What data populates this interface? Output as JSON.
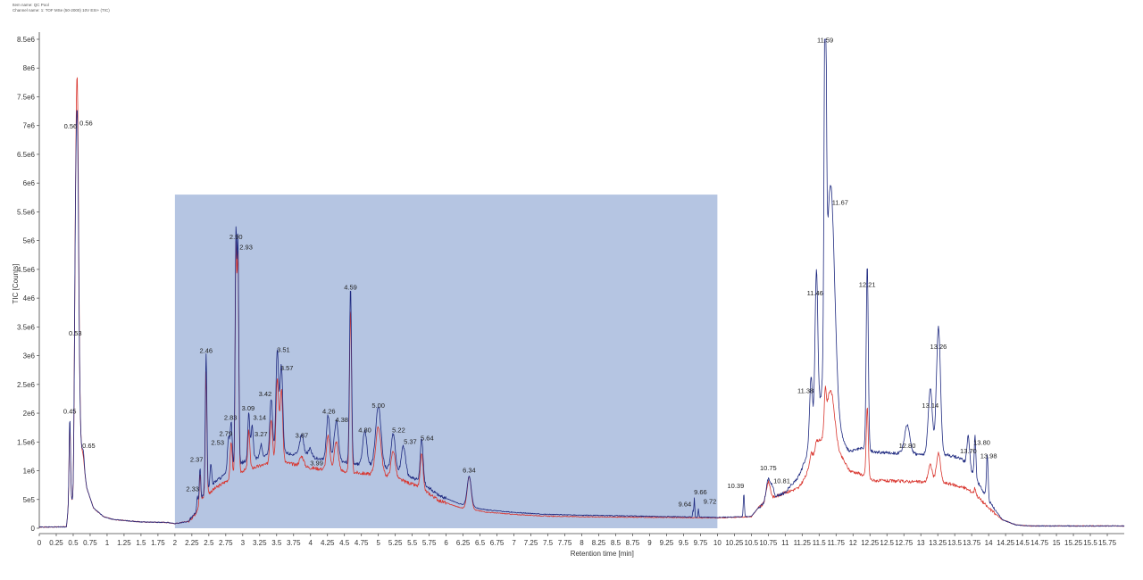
{
  "header": {
    "line1": "Item name: QC Pool",
    "line2": "Channel name: 1: TOF MSe (50-2000) 10V ESI+ (TIC)"
  },
  "colors": {
    "blue": "#1f2a80",
    "red": "#d9362f",
    "highlight": "#b5c5e2",
    "axis": "#444444"
  },
  "chart_data": {
    "type": "line",
    "title": "",
    "xlabel": "Retention time [min]",
    "ylabel": "TIC [Counts]",
    "xlim": [
      0,
      16
    ],
    "ylim": [
      0,
      8500000
    ],
    "x_ticks": [
      0,
      0.25,
      0.5,
      0.75,
      1,
      1.25,
      1.5,
      1.75,
      2,
      2.25,
      2.5,
      2.75,
      3,
      3.25,
      3.5,
      3.75,
      4,
      4.25,
      4.5,
      4.75,
      5,
      5.25,
      5.5,
      5.75,
      6,
      6.25,
      6.5,
      6.75,
      7,
      7.25,
      7.5,
      7.75,
      8,
      8.25,
      8.5,
      8.75,
      9,
      9.25,
      9.5,
      9.75,
      10,
      10.25,
      10.5,
      10.75,
      11,
      11.25,
      11.5,
      11.75,
      12,
      12.25,
      12.5,
      12.75,
      13,
      13.25,
      13.5,
      13.75,
      14,
      14.25,
      14.5,
      14.75,
      15,
      15.25,
      15.5,
      15.75
    ],
    "x_tick_labels": [
      "0",
      "0.25",
      "0.5",
      "0.75",
      "1",
      "1.25",
      "1.5",
      "1.75",
      "2",
      "2.25",
      "2.5",
      "2.75",
      "3",
      "3.25",
      "3.5",
      "3.75",
      "4",
      "4.25",
      "4.5",
      "4.75",
      "5",
      "5.25",
      "5.5",
      "5.75",
      "6",
      "6.25",
      "6.5",
      "6.75",
      "7",
      "7.25",
      "7.5",
      "7.75",
      "8",
      "8.25",
      "8.5",
      "8.75",
      "9",
      "9.25",
      "9.5",
      "9.75",
      "10",
      "10.25",
      "10.5",
      "10.75",
      "11",
      "11.25",
      "11.5",
      "11.75",
      "12",
      "12.25",
      "12.5",
      "12.75",
      "13",
      "13.25",
      "13.5",
      "13.75",
      "14",
      "14.25",
      "14.5",
      "14.75",
      "15",
      "15.25",
      "15.5",
      "15.75"
    ],
    "y_ticks": [
      0,
      500000,
      1000000,
      1500000,
      2000000,
      2500000,
      3000000,
      3500000,
      4000000,
      4500000,
      5000000,
      5500000,
      6000000,
      6500000,
      7000000,
      7500000,
      8000000,
      8500000
    ],
    "y_tick_labels": [
      "0",
      "5e5",
      "1e6",
      "1.5e6",
      "2e6",
      "2.5e6",
      "3e6",
      "3.5e6",
      "4e6",
      "4.5e6",
      "5e6",
      "5.5e6",
      "6e6",
      "6.5e6",
      "7e6",
      "7.5e6",
      "8e6",
      "8.5e6"
    ],
    "highlight_region": {
      "x": [
        2,
        10
      ],
      "y": [
        0,
        5800000
      ]
    },
    "baseline": [
      [
        0,
        20000
      ],
      [
        0.4,
        25000
      ],
      [
        0.45,
        600000
      ],
      [
        0.5,
        400000
      ],
      [
        0.6,
        1600000
      ],
      [
        0.7,
        700000
      ],
      [
        0.8,
        350000
      ],
      [
        0.95,
        200000
      ],
      [
        1.1,
        150000
      ],
      [
        1.5,
        110000
      ],
      [
        1.9,
        100000
      ],
      [
        2,
        80000
      ],
      [
        2.2,
        120000
      ],
      [
        2.3,
        250000
      ],
      [
        2.4,
        520000
      ],
      [
        2.6,
        700000
      ],
      [
        2.8,
        850000
      ],
      [
        3.0,
        1000000
      ],
      [
        3.3,
        1100000
      ],
      [
        3.6,
        1150000
      ],
      [
        4.0,
        1050000
      ],
      [
        4.4,
        1000000
      ],
      [
        4.8,
        950000
      ],
      [
        5.2,
        900000
      ],
      [
        5.6,
        720000
      ],
      [
        5.9,
        480000
      ],
      [
        6.2,
        360000
      ],
      [
        6.6,
        280000
      ],
      [
        7.0,
        240000
      ],
      [
        7.5,
        210000
      ],
      [
        8.0,
        200000
      ],
      [
        9.0,
        190000
      ],
      [
        10.0,
        180000
      ],
      [
        10.5,
        200000
      ],
      [
        10.6,
        350000
      ],
      [
        10.8,
        520000
      ],
      [
        11.0,
        620000
      ],
      [
        11.2,
        700000
      ],
      [
        11.3,
        900000
      ],
      [
        11.4,
        1200000
      ],
      [
        11.5,
        1500000
      ],
      [
        11.85,
        1200000
      ],
      [
        11.95,
        1000000
      ],
      [
        12.1,
        950000
      ],
      [
        12.3,
        830000
      ],
      [
        12.6,
        820000
      ],
      [
        12.9,
        810000
      ],
      [
        13.1,
        800000
      ],
      [
        13.4,
        780000
      ],
      [
        13.65,
        700000
      ],
      [
        13.8,
        600000
      ],
      [
        14.0,
        350000
      ],
      [
        14.2,
        150000
      ],
      [
        14.4,
        60000
      ],
      [
        14.6,
        40000
      ],
      [
        16.0,
        40000
      ]
    ],
    "series": [
      {
        "color": "#1f2a80",
        "peaks": [
          [
            0.45,
            1950000,
            0.01
          ],
          [
            0.53,
            3300000,
            0.015
          ],
          [
            0.56,
            6900000,
            0.02
          ],
          [
            0.65,
            1350000,
            0.012
          ],
          [
            2.33,
            520000,
            0.01
          ],
          [
            2.37,
            1050000,
            0.01
          ],
          [
            2.46,
            2950000,
            0.012
          ],
          [
            2.53,
            1050000,
            0.012
          ],
          [
            2.79,
            1450000,
            0.015
          ],
          [
            2.83,
            1700000,
            0.015
          ],
          [
            2.9,
            4950000,
            0.012
          ],
          [
            2.93,
            4750000,
            0.012
          ],
          [
            3.09,
            1850000,
            0.015
          ],
          [
            3.14,
            1650000,
            0.015
          ],
          [
            3.27,
            1300000,
            0.015
          ],
          [
            3.42,
            2100000,
            0.02
          ],
          [
            3.51,
            2950000,
            0.02
          ],
          [
            3.57,
            2650000,
            0.02
          ],
          [
            3.87,
            1450000,
            0.03
          ],
          [
            3.99,
            1200000,
            0.03
          ],
          [
            4.26,
            1800000,
            0.025
          ],
          [
            4.38,
            1700000,
            0.03
          ],
          [
            4.59,
            4050000,
            0.015
          ],
          [
            4.8,
            1550000,
            0.03
          ],
          [
            5.0,
            1970000,
            0.04
          ],
          [
            5.22,
            1500000,
            0.03
          ],
          [
            5.37,
            1300000,
            0.03
          ],
          [
            5.64,
            1450000,
            0.02
          ],
          [
            6.34,
            850000,
            0.03
          ],
          [
            9.64,
            300000,
            0.006
          ],
          [
            9.66,
            520000,
            0.006
          ],
          [
            9.72,
            330000,
            0.006
          ],
          [
            10.39,
            600000,
            0.008
          ],
          [
            10.75,
            850000,
            0.03
          ],
          [
            10.81,
            700000,
            0.02
          ],
          [
            11.38,
            2200000,
            0.02
          ],
          [
            11.46,
            3950000,
            0.02
          ],
          [
            11.59,
            8350000,
            0.015
          ],
          [
            11.67,
            5500000,
            0.06
          ],
          [
            12.21,
            4100000,
            0.015
          ],
          [
            12.8,
            1300000,
            0.04
          ],
          [
            13.14,
            1950000,
            0.03
          ],
          [
            13.26,
            3000000,
            0.03
          ],
          [
            13.7,
            1200000,
            0.02
          ],
          [
            13.8,
            1300000,
            0.012
          ],
          [
            13.98,
            1150000,
            0.012
          ]
        ],
        "lift": [
          [
            2.3,
            0
          ],
          [
            2.6,
            120000
          ],
          [
            3.0,
            150000
          ],
          [
            4.0,
            180000
          ],
          [
            5.5,
            120000
          ],
          [
            6.5,
            40000
          ],
          [
            11.0,
            0
          ],
          [
            11.3,
            300000
          ],
          [
            11.5,
            600000
          ],
          [
            11.9,
            300000
          ],
          [
            12.2,
            500000
          ],
          [
            13.0,
            480000
          ],
          [
            13.6,
            500000
          ],
          [
            13.9,
            200000
          ],
          [
            14.2,
            0
          ]
        ]
      },
      {
        "color": "#d9362f",
        "peaks": [
          [
            0.45,
            1900000,
            0.01
          ],
          [
            0.53,
            3200000,
            0.015
          ],
          [
            0.56,
            7500000,
            0.02
          ],
          [
            0.65,
            1250000,
            0.012
          ],
          [
            2.37,
            950000,
            0.01
          ],
          [
            2.46,
            2700000,
            0.012
          ],
          [
            2.83,
            1500000,
            0.015
          ],
          [
            2.9,
            4800000,
            0.012
          ],
          [
            2.93,
            4600000,
            0.012
          ],
          [
            3.09,
            1700000,
            0.015
          ],
          [
            3.42,
            1900000,
            0.02
          ],
          [
            3.51,
            2600000,
            0.02
          ],
          [
            3.57,
            2400000,
            0.02
          ],
          [
            3.87,
            1250000,
            0.03
          ],
          [
            4.26,
            1600000,
            0.025
          ],
          [
            4.38,
            1500000,
            0.03
          ],
          [
            4.59,
            3800000,
            0.015
          ],
          [
            5.0,
            1750000,
            0.04
          ],
          [
            5.22,
            1350000,
            0.03
          ],
          [
            5.64,
            1300000,
            0.02
          ],
          [
            6.34,
            900000,
            0.03
          ],
          [
            10.75,
            800000,
            0.03
          ],
          [
            11.38,
            1300000,
            0.02
          ],
          [
            11.46,
            1500000,
            0.02
          ],
          [
            11.59,
            2000000,
            0.015
          ],
          [
            11.67,
            2400000,
            0.06
          ],
          [
            12.21,
            2100000,
            0.015
          ],
          [
            13.14,
            1100000,
            0.03
          ],
          [
            13.26,
            1300000,
            0.03
          ],
          [
            13.8,
            700000,
            0.012
          ]
        ],
        "lift": [
          [
            0,
            0
          ]
        ]
      }
    ],
    "annotations": [
      {
        "label": "0.45",
        "x": 0.45,
        "y": 1950000
      },
      {
        "label": "0.53",
        "x": 0.53,
        "y": 3300000
      },
      {
        "label": "0.56",
        "x": 0.46,
        "y": 6900000
      },
      {
        "label": "0.56",
        "x": 0.69,
        "y": 6960000
      },
      {
        "label": "0.65",
        "x": 0.73,
        "y": 1350000
      },
      {
        "label": "2.33",
        "x": 2.26,
        "y": 600000
      },
      {
        "label": "2.37",
        "x": 2.32,
        "y": 1110000
      },
      {
        "label": "2.46",
        "x": 2.46,
        "y": 3000000
      },
      {
        "label": "2.53",
        "x": 2.63,
        "y": 1400000
      },
      {
        "label": "2.79",
        "x": 2.75,
        "y": 1560000
      },
      {
        "label": "2.83",
        "x": 2.82,
        "y": 1840000
      },
      {
        "label": "2.90",
        "x": 2.9,
        "y": 4980000
      },
      {
        "label": "2.93",
        "x": 3.05,
        "y": 4800000
      },
      {
        "label": "3.09",
        "x": 3.08,
        "y": 2000000
      },
      {
        "label": "3.14",
        "x": 3.25,
        "y": 1840000
      },
      {
        "label": "3.27",
        "x": 3.27,
        "y": 1550000
      },
      {
        "label": "3.42",
        "x": 3.33,
        "y": 2250000
      },
      {
        "label": "3.51",
        "x": 3.6,
        "y": 3020000
      },
      {
        "label": "3.57",
        "x": 3.65,
        "y": 2700000
      },
      {
        "label": "3.87",
        "x": 3.87,
        "y": 1530000
      },
      {
        "label": "3.99",
        "x": 4.09,
        "y": 1050000
      },
      {
        "label": "4.26",
        "x": 4.27,
        "y": 1950000
      },
      {
        "label": "4.38",
        "x": 4.46,
        "y": 1800000
      },
      {
        "label": "4.59",
        "x": 4.59,
        "y": 4100000
      },
      {
        "label": "4.80",
        "x": 4.8,
        "y": 1620000
      },
      {
        "label": "5.00",
        "x": 5.0,
        "y": 2050000
      },
      {
        "label": "5.22",
        "x": 5.3,
        "y": 1620000
      },
      {
        "label": "5.37",
        "x": 5.47,
        "y": 1420000
      },
      {
        "label": "5.64",
        "x": 5.72,
        "y": 1480000
      },
      {
        "label": "6.34",
        "x": 6.34,
        "y": 920000
      },
      {
        "label": "9.64",
        "x": 9.52,
        "y": 330000
      },
      {
        "label": "9.66",
        "x": 9.75,
        "y": 540000
      },
      {
        "label": "9.72",
        "x": 9.89,
        "y": 380000
      },
      {
        "label": "10.39",
        "x": 10.27,
        "y": 650000
      },
      {
        "label": "10.75",
        "x": 10.75,
        "y": 960000
      },
      {
        "label": "10.81",
        "x": 10.95,
        "y": 740000
      },
      {
        "label": "11.38",
        "x": 11.3,
        "y": 2300000
      },
      {
        "label": "11.46",
        "x": 11.44,
        "y": 4000000
      },
      {
        "label": "11.59",
        "x": 11.59,
        "y": 8400000
      },
      {
        "label": "11.67",
        "x": 11.81,
        "y": 5580000
      },
      {
        "label": "12.21",
        "x": 12.21,
        "y": 4150000
      },
      {
        "label": "12.80",
        "x": 12.8,
        "y": 1350000
      },
      {
        "label": "13.14",
        "x": 13.14,
        "y": 2050000
      },
      {
        "label": "13.26",
        "x": 13.26,
        "y": 3070000
      },
      {
        "label": "13.70",
        "x": 13.7,
        "y": 1260000
      },
      {
        "label": "13.80",
        "x": 13.9,
        "y": 1400000
      },
      {
        "label": "13.98",
        "x": 14.0,
        "y": 1170000
      }
    ]
  }
}
